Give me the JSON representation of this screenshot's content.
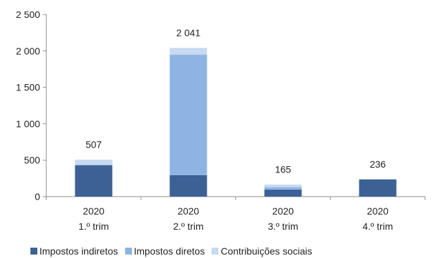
{
  "chart_data": {
    "type": "bar",
    "stacked": true,
    "title": "",
    "xlabel": "",
    "ylabel": "",
    "ylim": [
      0,
      2500
    ],
    "yticks": [
      "0",
      "500",
      "1 000",
      "1 500",
      "2 000",
      "2 500"
    ],
    "ytick_values": [
      0,
      500,
      1000,
      1500,
      2000,
      2500
    ],
    "categories": [
      {
        "year": "2020",
        "quarter": "1.º trim"
      },
      {
        "year": "2020",
        "quarter": "2.º trim"
      },
      {
        "year": "2020",
        "quarter": "3.º trim"
      },
      {
        "year": "2020",
        "quarter": "4.º trim"
      }
    ],
    "series": [
      {
        "name": "Impostos indiretos",
        "color": "#3b6195",
        "values": [
          432,
          294,
          95,
          236
        ]
      },
      {
        "name": "Impostos diretos",
        "color": "#8eb4e3",
        "values": [
          0,
          1655,
          35,
          0
        ]
      },
      {
        "name": "Contribuições sociais",
        "color": "#c7daf1",
        "values": [
          75,
          92,
          35,
          0
        ]
      }
    ],
    "totals": [
      "507",
      "2 041",
      "165",
      "236"
    ],
    "legend_position": "bottom",
    "grid": false
  }
}
